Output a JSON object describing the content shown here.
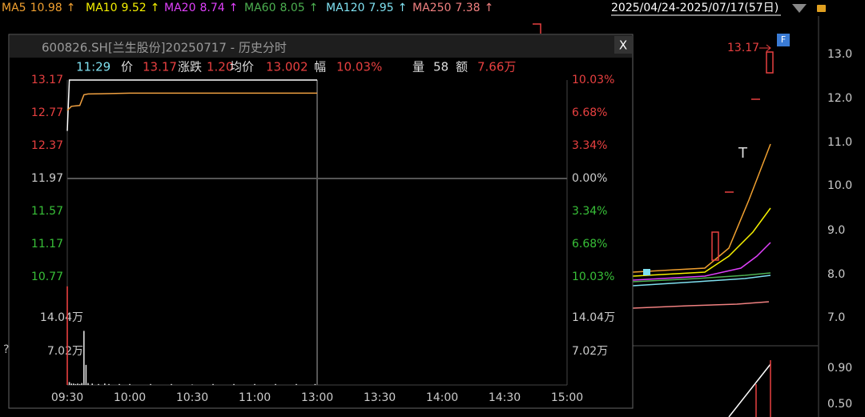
{
  "ma_bar": [
    {
      "label": "MA5",
      "value": "10.98",
      "arrow": "↑"
    },
    {
      "label": "MA10",
      "value": "9.52",
      "arrow": "↑"
    },
    {
      "label": "MA20",
      "value": "8.74",
      "arrow": "↑"
    },
    {
      "label": "MA60",
      "value": "8.05",
      "arrow": "↑"
    },
    {
      "label": "MA120",
      "value": "7.95",
      "arrow": "↑"
    },
    {
      "label": "MA250",
      "value": "7.38",
      "arrow": "↑"
    }
  ],
  "date_range": "2025/04/24-2025/07/17(57日)",
  "background": {
    "price_axis": [
      "13.0",
      "12.0",
      "11.0",
      "10.0",
      "9.0",
      "8.0",
      "7.0"
    ],
    "volume_axis": [
      "0.90",
      "0.50"
    ],
    "high_label": "13.17",
    "badge": "F",
    "marker": "T",
    "help": "?"
  },
  "popup": {
    "close": "X",
    "info": [
      {
        "label": "11:29"
      },
      {
        "label": "价",
        "value": "13.17"
      },
      {
        "label": "涨跌",
        "value": "1.20"
      },
      {
        "label": "均价",
        "value": "13.002"
      },
      {
        "label": "幅",
        "value": "10.03%"
      },
      {
        "label": "量",
        "value": "58"
      },
      {
        "label": "额",
        "value": "7.66万"
      }
    ]
  },
  "chart_data": {
    "type": "line",
    "title": "600826.SH[兰生股份]20250717 - 历史分时",
    "xlim": [
      0,
      240
    ],
    "xticks": [
      {
        "value": 0,
        "label": "09:30"
      },
      {
        "value": 30,
        "label": "10:00"
      },
      {
        "value": 60,
        "label": "10:30"
      },
      {
        "value": 90,
        "label": "11:00"
      },
      {
        "value": 120,
        "label": "13:00"
      },
      {
        "value": 150,
        "label": "13:30"
      },
      {
        "value": 180,
        "label": "14:00"
      },
      {
        "value": 210,
        "label": "14:30"
      },
      {
        "value": 240,
        "label": "15:00"
      }
    ],
    "ylim": [
      10.77,
      13.17
    ],
    "yticks": [
      10.77,
      11.17,
      11.57,
      11.97,
      12.37,
      12.77,
      13.17
    ],
    "y2lim": [
      -10.03,
      10.03
    ],
    "y2ticks": [
      {
        "value": -10.03,
        "label": "10.03%"
      },
      {
        "value": -6.68,
        "label": "6.68%"
      },
      {
        "value": -3.34,
        "label": "3.34%"
      },
      {
        "value": 0,
        "label": "0.00%"
      },
      {
        "value": 3.34,
        "label": "3.34%"
      },
      {
        "value": 6.68,
        "label": "6.68%"
      },
      {
        "value": 10.03,
        "label": "10.03%"
      }
    ],
    "series": [
      {
        "color": "#ffffff",
        "x": [
          0,
          1,
          120
        ],
        "values": [
          12.55,
          13.17,
          13.17
        ]
      },
      {
        "color": "#f0a040",
        "x": [
          0,
          2,
          6,
          8,
          10,
          30,
          120
        ],
        "values": [
          12.8,
          12.85,
          12.86,
          12.99,
          13.0,
          13.01,
          13.01
        ]
      }
    ],
    "volume": {
      "color": "#dddddd",
      "ylim": [
        0,
        21.06
      ],
      "yticks": [
        {
          "value": 7.02,
          "label": "7.02万"
        },
        {
          "value": 14.04,
          "label": "14.04万"
        }
      ],
      "x": [
        0,
        1,
        2,
        3,
        4,
        5,
        6,
        7,
        8,
        9,
        10,
        12,
        15,
        18,
        20,
        25,
        30,
        40,
        50,
        60,
        70,
        80,
        90,
        100,
        110,
        119
      ],
      "values": [
        20.6,
        0.6,
        0.3,
        0.3,
        0.2,
        0.3,
        0.2,
        0.4,
        11.3,
        4.2,
        0.4,
        0.3,
        0.2,
        0.3,
        0.2,
        0.2,
        0.2,
        0.2,
        0.2,
        0.1,
        0.2,
        0.2,
        0.2,
        0.2,
        0.2,
        0.2
      ]
    }
  }
}
